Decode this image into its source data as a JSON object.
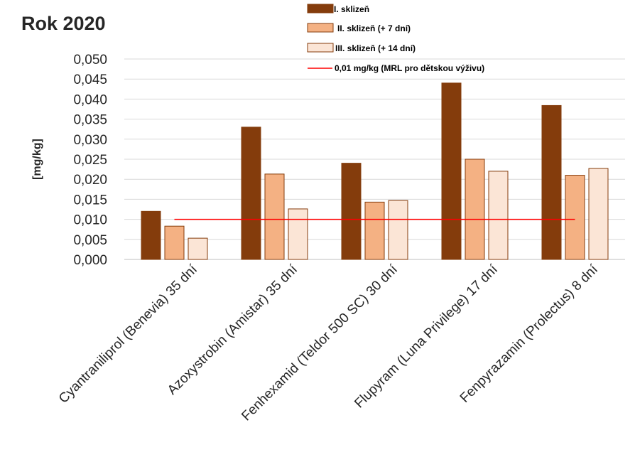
{
  "chart_data": {
    "type": "bar",
    "title": "Rok 2020",
    "ylabel": "[mg/kg]",
    "xlabel": "",
    "categories": [
      "Cyantraniliprol (Benevia) 35 dní",
      "Azoxystrobin (Amistar) 35 dní",
      "Fenhexamid (Teldor 500 SC) 30 dní",
      "Flupyram (Luna Privilege) 17 dní",
      "Fenpyrazamin (Prolectus) 8 dní"
    ],
    "series": [
      {
        "name": "I. sklizeň",
        "color": "#843c0c",
        "values": [
          0.012,
          0.033,
          0.024,
          0.044,
          0.0384
        ]
      },
      {
        "name": "II. sklizeň (+ 7 dní)",
        "color": "#f4b183",
        "values": [
          0.0083,
          0.0213,
          0.0143,
          0.025,
          0.021
        ]
      },
      {
        "name": "III. sklizeň (+ 14 dní)",
        "color": "#fbe5d6",
        "values": [
          0.0053,
          0.0126,
          0.0147,
          0.022,
          0.0227
        ]
      }
    ],
    "reference_line": {
      "name": "0,01 mg/kg (MRL pro dětskou výživu)",
      "value": 0.01,
      "color": "#ff0000"
    },
    "ylim": [
      0,
      0.05
    ],
    "yticks": [
      "0,000",
      "0,005",
      "0,010",
      "0,015",
      "0,020",
      "0,025",
      "0,030",
      "0,035",
      "0,040",
      "0,045",
      "0,050"
    ],
    "grid": true,
    "legend_position": "top-right"
  }
}
